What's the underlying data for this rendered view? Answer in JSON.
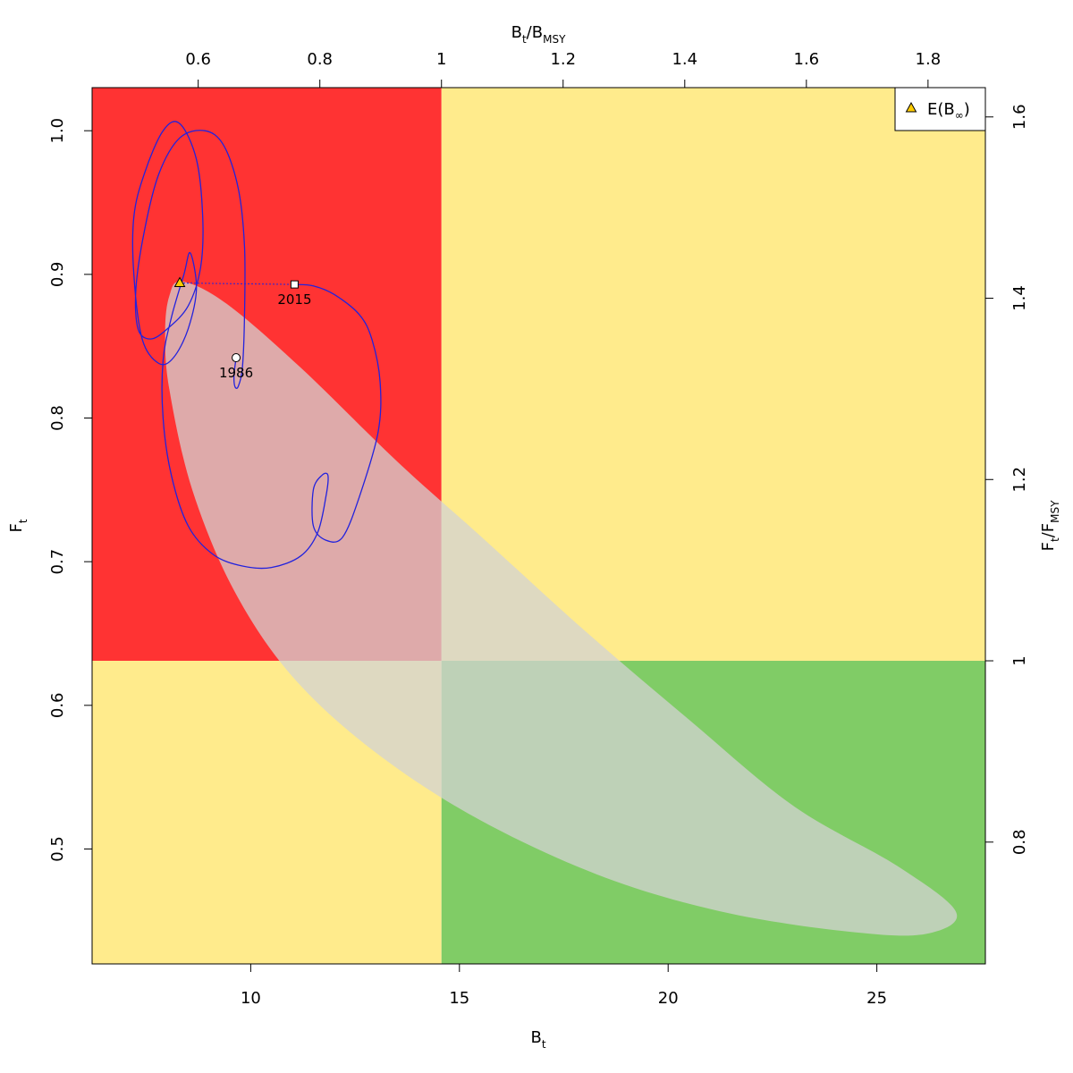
{
  "chart_data": {
    "type": "scatter",
    "title": "",
    "xlim": [
      6.2,
      27.6
    ],
    "ylim": [
      0.42,
      1.03
    ],
    "x_ticks": [
      10,
      15,
      20,
      25
    ],
    "y_ticks": [
      0.5,
      0.6,
      0.7,
      0.8,
      0.9,
      1.0
    ],
    "x_tick_labels": [
      "10",
      "15",
      "20",
      "25"
    ],
    "y_tick_labels": [
      "0.5",
      "0.6",
      "0.7",
      "0.8",
      "0.9",
      "1.0"
    ],
    "xlabel": {
      "base": "B",
      "sub": "t"
    },
    "ylabel": {
      "base": "F",
      "sub": "t"
    },
    "top_axis": {
      "label": {
        "num_base": "B",
        "num_sub": "t",
        "den_base": "B",
        "den_sub": "MSY"
      },
      "ticks": [
        0.6,
        0.8,
        1,
        1.2,
        1.4,
        1.6,
        1.8
      ],
      "tick_labels": [
        "0.6",
        "0.8",
        "1",
        "1.2",
        "1.4",
        "1.6",
        "1.8"
      ]
    },
    "right_axis": {
      "label": {
        "num_base": "F",
        "num_sub": "t",
        "den_base": "F",
        "den_sub": "MSY"
      },
      "ticks": [
        0.8,
        1,
        1.2,
        1.4,
        1.6
      ],
      "tick_labels": [
        "0.8",
        "1",
        "1.2",
        "1.4",
        "1.6"
      ]
    },
    "reference": {
      "Bmsy": 14.57,
      "Fmsy": 0.631
    },
    "quadrant_colors": {
      "red": "#ff3333",
      "yellow": "#ffeb8c",
      "green": "#80cc66"
    },
    "ellipse": {
      "color": "#d3d3d3",
      "opacity": 0.75,
      "points": [
        [
          8.35,
          0.895
        ],
        [
          9.4,
          0.88
        ],
        [
          11.2,
          0.835
        ],
        [
          13.5,
          0.77
        ],
        [
          15.5,
          0.718
        ],
        [
          18.0,
          0.652
        ],
        [
          20.5,
          0.59
        ],
        [
          23.0,
          0.53
        ],
        [
          25.5,
          0.488
        ],
        [
          26.9,
          0.456
        ],
        [
          26.2,
          0.441
        ],
        [
          24.5,
          0.442
        ],
        [
          21.5,
          0.455
        ],
        [
          18.5,
          0.48
        ],
        [
          15.5,
          0.52
        ],
        [
          13.0,
          0.567
        ],
        [
          11.0,
          0.62
        ],
        [
          9.6,
          0.68
        ],
        [
          8.6,
          0.75
        ],
        [
          8.05,
          0.82
        ],
        [
          7.95,
          0.86
        ],
        [
          8.05,
          0.885
        ]
      ]
    },
    "trajectory": {
      "color": "#2222dd",
      "points": [
        [
          9.65,
          0.842
        ],
        [
          9.6,
          0.83
        ],
        [
          9.62,
          0.822
        ],
        [
          9.7,
          0.822
        ],
        [
          9.8,
          0.835
        ],
        [
          9.85,
          0.87
        ],
        [
          9.85,
          0.92
        ],
        [
          9.7,
          0.96
        ],
        [
          9.35,
          0.99
        ],
        [
          8.9,
          1.0
        ],
        [
          8.3,
          0.995
        ],
        [
          7.8,
          0.97
        ],
        [
          7.45,
          0.93
        ],
        [
          7.25,
          0.89
        ],
        [
          7.3,
          0.862
        ],
        [
          7.6,
          0.855
        ],
        [
          8.0,
          0.862
        ],
        [
          8.5,
          0.878
        ],
        [
          8.8,
          0.905
        ],
        [
          8.85,
          0.94
        ],
        [
          8.7,
          0.98
        ],
        [
          8.3,
          1.005
        ],
        [
          7.9,
          1.0
        ],
        [
          7.45,
          0.97
        ],
        [
          7.2,
          0.94
        ],
        [
          7.2,
          0.9
        ],
        [
          7.4,
          0.855
        ],
        [
          7.8,
          0.838
        ],
        [
          8.15,
          0.842
        ],
        [
          8.5,
          0.862
        ],
        [
          8.7,
          0.89
        ],
        [
          8.55,
          0.915
        ],
        [
          8.4,
          0.9
        ],
        [
          8.1,
          0.87
        ],
        [
          7.9,
          0.84
        ],
        [
          7.9,
          0.8
        ],
        [
          8.1,
          0.76
        ],
        [
          8.5,
          0.725
        ],
        [
          9.1,
          0.705
        ],
        [
          9.8,
          0.697
        ],
        [
          10.5,
          0.696
        ],
        [
          11.2,
          0.704
        ],
        [
          11.6,
          0.72
        ],
        [
          11.8,
          0.745
        ],
        [
          11.85,
          0.76
        ],
        [
          11.7,
          0.76
        ],
        [
          11.5,
          0.75
        ],
        [
          11.5,
          0.725
        ],
        [
          11.8,
          0.715
        ],
        [
          12.2,
          0.717
        ],
        [
          12.6,
          0.745
        ],
        [
          13.05,
          0.79
        ],
        [
          13.1,
          0.825
        ],
        [
          12.9,
          0.855
        ],
        [
          12.6,
          0.872
        ],
        [
          12.0,
          0.886
        ],
        [
          11.5,
          0.892
        ],
        [
          11.05,
          0.893
        ]
      ]
    },
    "start_point": {
      "year": "1986",
      "x": 9.65,
      "y": 0.842
    },
    "end_point": {
      "year": "2015",
      "x": 11.05,
      "y": 0.893
    },
    "expected": {
      "x": 8.3,
      "y": 0.894,
      "color": "#ffcc00"
    },
    "legend": {
      "position": "top-right",
      "entries": [
        {
          "marker": "triangle",
          "base": "E(B",
          "sub": "∞",
          "close": ")"
        }
      ]
    }
  }
}
